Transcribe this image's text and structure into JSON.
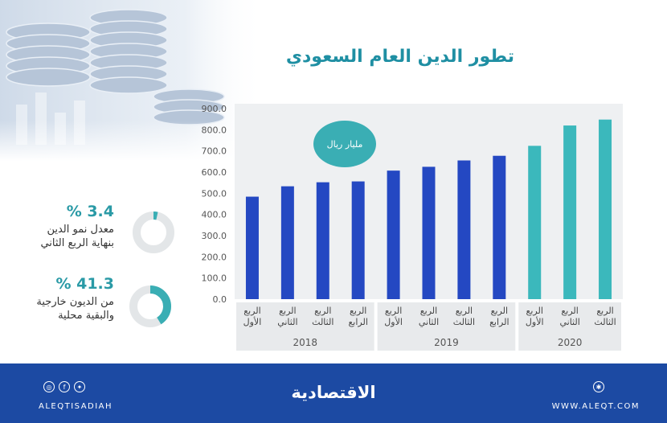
{
  "title": "تطور الدين العام السعودي",
  "unit": "مليار ريال",
  "chart_data": {
    "type": "bar",
    "categories": [
      "الربع الأول",
      "الربع الثاني",
      "الربع الثالث",
      "الربع الرابع",
      "الربع الأول",
      "الربع الثاني",
      "الربع الثالث",
      "الربع الرابع",
      "الربع الأول",
      "الربع الثاني",
      "الربع الثالث"
    ],
    "category_lines": [
      [
        "الربع",
        "الأول"
      ],
      [
        "الربع",
        "الثاني"
      ],
      [
        "الربع",
        "الثالث"
      ],
      [
        "الربع",
        "الرابع"
      ],
      [
        "الربع",
        "الأول"
      ],
      [
        "الربع",
        "الثاني"
      ],
      [
        "الربع",
        "الثالث"
      ],
      [
        "الربع",
        "الرابع"
      ],
      [
        "الربع",
        "الأول"
      ],
      [
        "الربع",
        "الثاني"
      ],
      [
        "الربع",
        "الثالث"
      ]
    ],
    "values": [
      484,
      533,
      552,
      556,
      607,
      625,
      655,
      677,
      724,
      820,
      848
    ],
    "years": [
      {
        "label": "2018",
        "start": 0,
        "end": 3
      },
      {
        "label": "2019",
        "start": 4,
        "end": 7
      },
      {
        "label": "2020",
        "start": 8,
        "end": 10
      }
    ],
    "ylim": [
      0,
      900
    ],
    "yticks": [
      "0.0",
      "100.0",
      "200.0",
      "300.0",
      "400.0",
      "500.0",
      "600.0",
      "700.0",
      "800.0",
      "900.0"
    ],
    "colors": {
      "2018": "#2448c2",
      "2019": "#2448c2",
      "2020": "#3bb8bc"
    },
    "grid": false
  },
  "stats": [
    {
      "pct": "% 3.4",
      "line1": "معدل نمو الدين",
      "line2": "بنهاية الربع الثاني",
      "fraction": 0.034
    },
    {
      "pct": "% 41.3",
      "line1": "من الديون خارجية",
      "line2": "والبقية محلية",
      "fraction": 0.413
    }
  ],
  "colors": {
    "accent": "#2a9aa6",
    "footer": "#1c4aa3",
    "ring_bg": "#e3e6e8",
    "ring_fg": "#3aaeb4"
  },
  "footer": {
    "brand": "الاقتصادية",
    "handle": "ALEQTISADIAH",
    "site": "WWW.ALEQT.COM",
    "icons": [
      "instagram-icon",
      "facebook-icon",
      "twitter-icon"
    ]
  }
}
